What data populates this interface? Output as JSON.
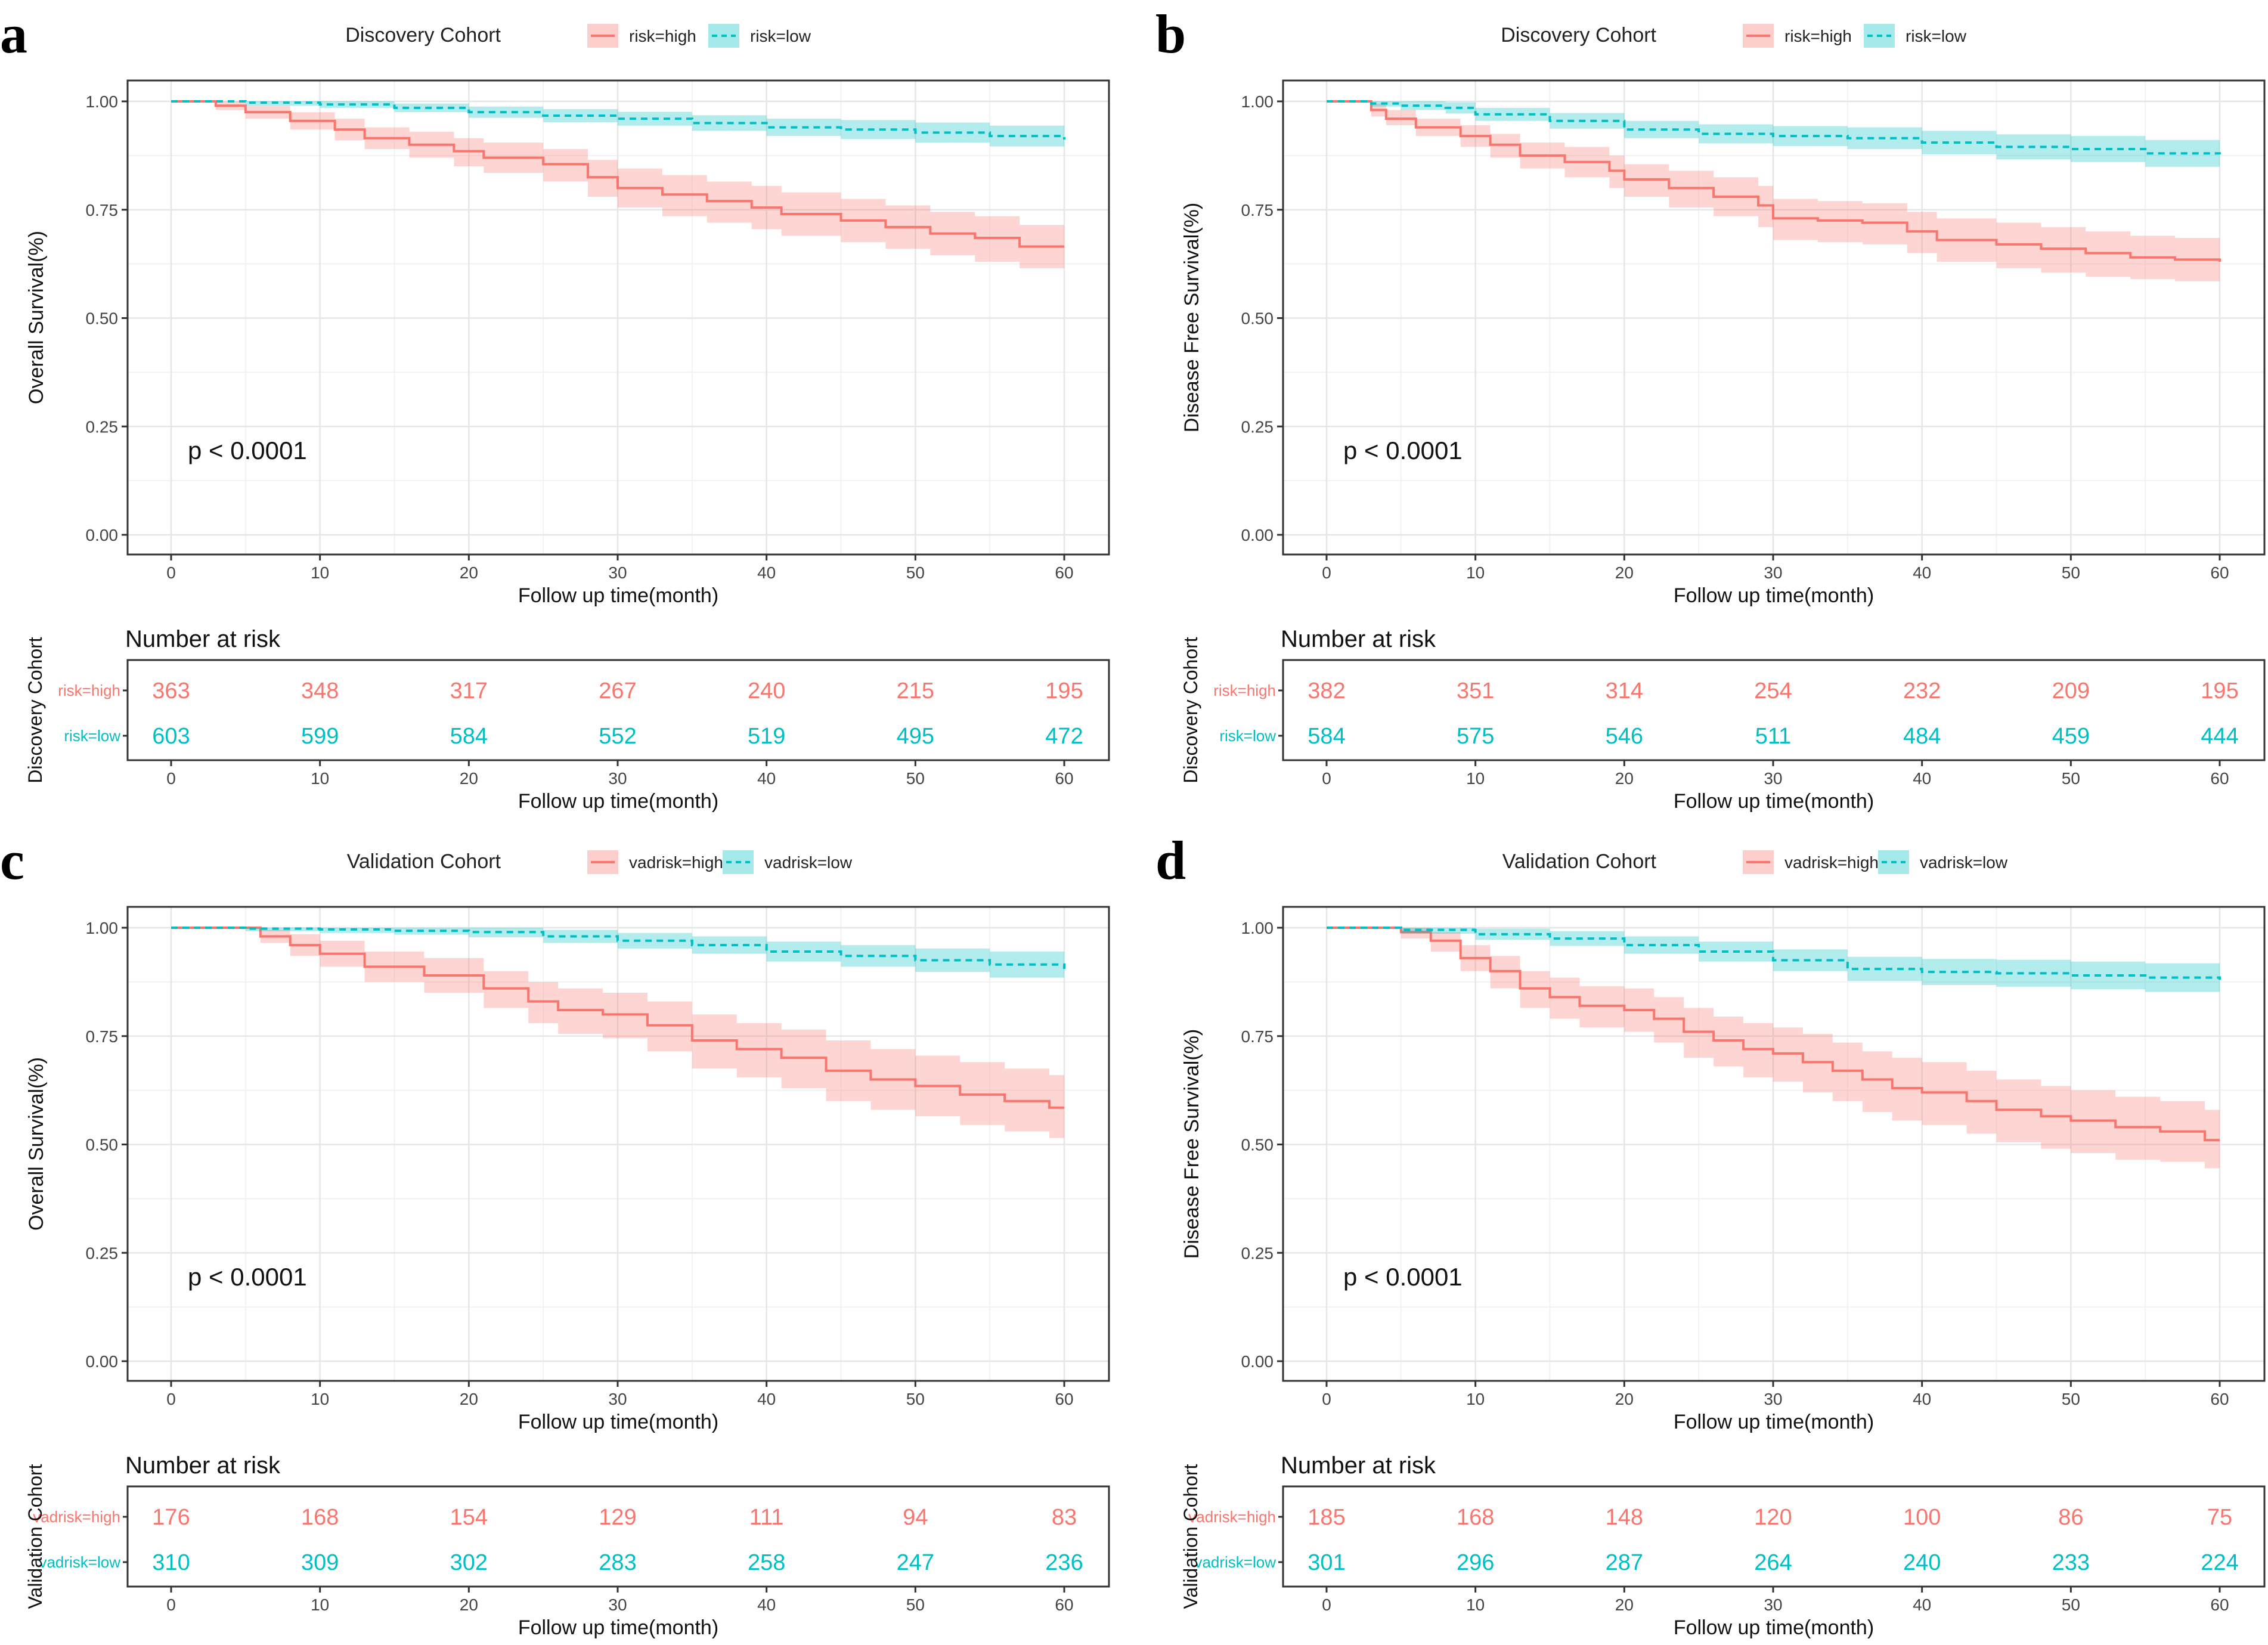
{
  "colors": {
    "high": "#F8766D",
    "low": "#00BFC4",
    "high_fill": "#F8766D",
    "low_fill": "#00BFC4"
  },
  "common": {
    "xlabel": "Follow up time(month)",
    "xticks": [
      0,
      10,
      20,
      30,
      40,
      50,
      60
    ],
    "yticks": [
      "0.00",
      "0.25",
      "0.50",
      "0.75",
      "1.00"
    ],
    "ylim": [
      0,
      1
    ],
    "xlim": [
      0,
      60
    ],
    "risk_title": "Number at risk"
  },
  "chart_data": [
    {
      "panel_label": "a",
      "type": "line",
      "legend_title": "Discovery Cohort",
      "ylabel": "Overall Survival(%)",
      "pvalue": "p < 0.0001",
      "risk_ylabel": "Discovery Cohort",
      "series": [
        {
          "name": "risk=high",
          "group": "high",
          "style": "solid",
          "x": [
            0,
            3,
            5,
            8,
            11,
            13,
            16,
            19,
            21,
            25,
            28,
            30,
            33,
            36,
            39,
            41,
            45,
            48,
            51,
            54,
            57,
            60
          ],
          "y": [
            1.0,
            0.99,
            0.975,
            0.955,
            0.935,
            0.915,
            0.9,
            0.885,
            0.87,
            0.855,
            0.825,
            0.8,
            0.785,
            0.77,
            0.755,
            0.74,
            0.725,
            0.71,
            0.695,
            0.685,
            0.665,
            0.665
          ],
          "lower": [
            1.0,
            0.98,
            0.96,
            0.935,
            0.91,
            0.89,
            0.87,
            0.85,
            0.835,
            0.815,
            0.78,
            0.755,
            0.735,
            0.72,
            0.705,
            0.69,
            0.675,
            0.66,
            0.645,
            0.63,
            0.615,
            0.615
          ],
          "upper": [
            1.0,
            1.0,
            0.99,
            0.975,
            0.96,
            0.94,
            0.93,
            0.915,
            0.905,
            0.89,
            0.865,
            0.845,
            0.83,
            0.815,
            0.805,
            0.79,
            0.775,
            0.76,
            0.745,
            0.735,
            0.715,
            0.715
          ]
        },
        {
          "name": "risk=low",
          "group": "low",
          "style": "dashed",
          "x": [
            0,
            5,
            10,
            15,
            20,
            25,
            30,
            35,
            40,
            45,
            50,
            55,
            60
          ],
          "y": [
            1.0,
            0.997,
            0.993,
            0.985,
            0.975,
            0.967,
            0.96,
            0.95,
            0.94,
            0.935,
            0.928,
            0.92,
            0.912
          ],
          "lower": [
            1.0,
            0.99,
            0.985,
            0.975,
            0.962,
            0.952,
            0.944,
            0.932,
            0.92,
            0.913,
            0.905,
            0.896,
            0.885
          ],
          "upper": [
            1.0,
            1.0,
            1.0,
            0.995,
            0.988,
            0.982,
            0.976,
            0.968,
            0.96,
            0.957,
            0.951,
            0.944,
            0.939
          ]
        }
      ],
      "risk_table": [
        {
          "label": "risk=high",
          "group": "high",
          "values": [
            363,
            348,
            317,
            267,
            240,
            215,
            195
          ]
        },
        {
          "label": "risk=low",
          "group": "low",
          "values": [
            603,
            599,
            584,
            552,
            519,
            495,
            472
          ]
        }
      ]
    },
    {
      "panel_label": "b",
      "type": "line",
      "legend_title": "Discovery Cohort",
      "ylabel": "Disease Free Survival(%)",
      "pvalue": "p < 0.0001",
      "risk_ylabel": "Discovery Cohort",
      "series": [
        {
          "name": "risk=high",
          "group": "high",
          "style": "solid",
          "x": [
            0,
            3,
            4,
            6,
            9,
            11,
            13,
            16,
            19,
            20,
            23,
            26,
            29,
            30,
            33,
            36,
            39,
            41,
            45,
            48,
            51,
            54,
            57,
            60
          ],
          "y": [
            1.0,
            0.98,
            0.96,
            0.94,
            0.92,
            0.9,
            0.875,
            0.86,
            0.84,
            0.82,
            0.8,
            0.78,
            0.76,
            0.73,
            0.725,
            0.72,
            0.7,
            0.68,
            0.67,
            0.66,
            0.65,
            0.64,
            0.635,
            0.63
          ],
          "lower": [
            1.0,
            0.965,
            0.945,
            0.92,
            0.895,
            0.87,
            0.845,
            0.825,
            0.8,
            0.78,
            0.755,
            0.735,
            0.71,
            0.68,
            0.675,
            0.67,
            0.65,
            0.63,
            0.615,
            0.605,
            0.595,
            0.59,
            0.585,
            0.58
          ],
          "upper": [
            1.0,
            0.995,
            0.98,
            0.96,
            0.945,
            0.925,
            0.905,
            0.895,
            0.875,
            0.855,
            0.84,
            0.825,
            0.805,
            0.775,
            0.77,
            0.765,
            0.745,
            0.73,
            0.72,
            0.71,
            0.7,
            0.69,
            0.685,
            0.68
          ]
        },
        {
          "name": "risk=low",
          "group": "low",
          "style": "dashed",
          "x": [
            0,
            3,
            5,
            8,
            10,
            15,
            20,
            25,
            30,
            35,
            40,
            45,
            50,
            55,
            60
          ],
          "y": [
            1.0,
            0.995,
            0.99,
            0.985,
            0.97,
            0.955,
            0.935,
            0.925,
            0.92,
            0.915,
            0.905,
            0.895,
            0.89,
            0.88,
            0.878
          ],
          "lower": [
            1.0,
            0.988,
            0.98,
            0.972,
            0.955,
            0.937,
            0.915,
            0.903,
            0.897,
            0.89,
            0.878,
            0.866,
            0.86,
            0.849,
            0.846
          ],
          "upper": [
            1.0,
            1.0,
            1.0,
            0.998,
            0.985,
            0.973,
            0.955,
            0.947,
            0.943,
            0.94,
            0.932,
            0.924,
            0.92,
            0.911,
            0.91
          ]
        }
      ],
      "risk_table": [
        {
          "label": "risk=high",
          "group": "high",
          "values": [
            382,
            351,
            314,
            254,
            232,
            209,
            195
          ]
        },
        {
          "label": "risk=low",
          "group": "low",
          "values": [
            584,
            575,
            546,
            511,
            484,
            459,
            444
          ]
        }
      ]
    },
    {
      "panel_label": "c",
      "type": "line",
      "legend_title": "Validation Cohort",
      "ylabel": "Overall Survival(%)",
      "pvalue": "p < 0.0001",
      "risk_ylabel": "Validation Cohort",
      "series": [
        {
          "name": "vadrisk=high",
          "group": "high",
          "style": "solid",
          "x": [
            0,
            6,
            8,
            10,
            13,
            17,
            21,
            24,
            26,
            29,
            32,
            35,
            38,
            41,
            44,
            47,
            50,
            53,
            56,
            59,
            60
          ],
          "y": [
            1.0,
            0.98,
            0.96,
            0.94,
            0.91,
            0.89,
            0.86,
            0.83,
            0.81,
            0.8,
            0.775,
            0.74,
            0.72,
            0.7,
            0.67,
            0.65,
            0.635,
            0.615,
            0.6,
            0.585,
            0.585
          ],
          "lower": [
            1.0,
            0.965,
            0.935,
            0.91,
            0.875,
            0.85,
            0.815,
            0.78,
            0.755,
            0.745,
            0.715,
            0.675,
            0.655,
            0.63,
            0.6,
            0.58,
            0.565,
            0.545,
            0.53,
            0.515,
            0.515
          ],
          "upper": [
            1.0,
            0.995,
            0.985,
            0.97,
            0.945,
            0.93,
            0.9,
            0.875,
            0.86,
            0.85,
            0.83,
            0.8,
            0.78,
            0.765,
            0.74,
            0.72,
            0.705,
            0.69,
            0.675,
            0.66,
            0.66
          ]
        },
        {
          "name": "vadrisk=low",
          "group": "low",
          "style": "dashed",
          "x": [
            0,
            5,
            10,
            15,
            20,
            25,
            30,
            35,
            40,
            45,
            50,
            55,
            60
          ],
          "y": [
            1.0,
            0.998,
            0.996,
            0.993,
            0.99,
            0.98,
            0.97,
            0.96,
            0.945,
            0.935,
            0.925,
            0.915,
            0.905
          ],
          "lower": [
            1.0,
            0.992,
            0.988,
            0.984,
            0.978,
            0.965,
            0.952,
            0.94,
            0.922,
            0.91,
            0.898,
            0.885,
            0.873
          ],
          "upper": [
            1.0,
            1.0,
            1.0,
            1.0,
            1.0,
            0.995,
            0.988,
            0.98,
            0.968,
            0.96,
            0.952,
            0.945,
            0.937
          ]
        }
      ],
      "risk_table": [
        {
          "label": "vadrisk=high",
          "group": "high",
          "values": [
            176,
            168,
            154,
            129,
            111,
            94,
            83
          ]
        },
        {
          "label": "vadrisk=low",
          "group": "low",
          "values": [
            310,
            309,
            302,
            283,
            258,
            247,
            236
          ]
        }
      ]
    },
    {
      "panel_label": "d",
      "type": "line",
      "legend_title": "Validation Cohort",
      "ylabel": "Disease Free Survival(%)",
      "pvalue": "p < 0.0001",
      "risk_ylabel": "Validation Cohort",
      "series": [
        {
          "name": "vadrisk=high",
          "group": "high",
          "style": "solid",
          "x": [
            0,
            5,
            7,
            9,
            11,
            13,
            15,
            17,
            20,
            22,
            24,
            26,
            28,
            30,
            32,
            34,
            36,
            38,
            40,
            43,
            45,
            48,
            50,
            53,
            56,
            59,
            60
          ],
          "y": [
            1.0,
            0.99,
            0.97,
            0.93,
            0.9,
            0.86,
            0.84,
            0.82,
            0.81,
            0.79,
            0.76,
            0.74,
            0.72,
            0.71,
            0.69,
            0.67,
            0.65,
            0.63,
            0.62,
            0.6,
            0.58,
            0.565,
            0.555,
            0.54,
            0.53,
            0.51,
            0.51
          ],
          "lower": [
            1.0,
            0.975,
            0.945,
            0.9,
            0.86,
            0.815,
            0.79,
            0.77,
            0.76,
            0.735,
            0.7,
            0.68,
            0.655,
            0.645,
            0.62,
            0.6,
            0.575,
            0.555,
            0.545,
            0.525,
            0.505,
            0.49,
            0.48,
            0.465,
            0.46,
            0.445,
            0.445
          ],
          "upper": [
            1.0,
            1.0,
            0.99,
            0.96,
            0.935,
            0.9,
            0.885,
            0.865,
            0.86,
            0.84,
            0.815,
            0.795,
            0.78,
            0.77,
            0.755,
            0.735,
            0.715,
            0.7,
            0.69,
            0.67,
            0.65,
            0.635,
            0.625,
            0.61,
            0.6,
            0.58,
            0.58
          ]
        },
        {
          "name": "vadrisk=low",
          "group": "low",
          "style": "dashed",
          "x": [
            0,
            5,
            10,
            15,
            20,
            25,
            30,
            35,
            40,
            45,
            50,
            55,
            60
          ],
          "y": [
            1.0,
            0.995,
            0.985,
            0.975,
            0.96,
            0.945,
            0.925,
            0.905,
            0.898,
            0.895,
            0.89,
            0.885,
            0.88
          ],
          "lower": [
            1.0,
            0.986,
            0.972,
            0.958,
            0.94,
            0.922,
            0.9,
            0.877,
            0.868,
            0.864,
            0.858,
            0.852,
            0.846
          ],
          "upper": [
            1.0,
            1.0,
            0.998,
            0.992,
            0.98,
            0.968,
            0.95,
            0.933,
            0.928,
            0.926,
            0.922,
            0.918,
            0.914
          ]
        }
      ],
      "risk_table": [
        {
          "label": "vadrisk=high",
          "group": "high",
          "values": [
            185,
            168,
            148,
            120,
            100,
            86,
            75
          ]
        },
        {
          "label": "vadrisk=low",
          "group": "low",
          "values": [
            301,
            296,
            287,
            264,
            240,
            233,
            224
          ]
        }
      ]
    }
  ]
}
